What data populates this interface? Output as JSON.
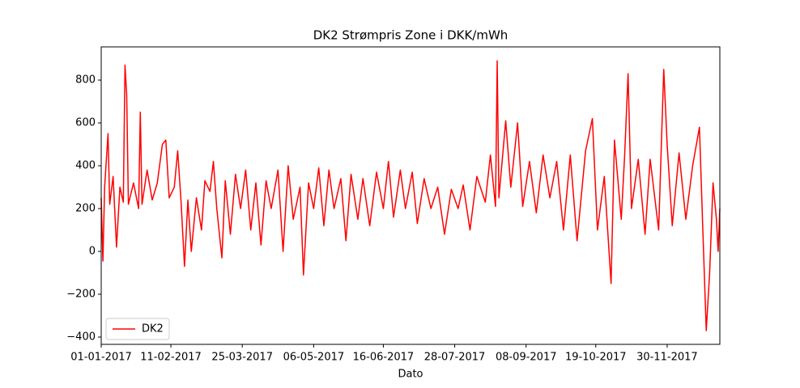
{
  "chart_data": {
    "type": "line",
    "title": "DK2 Strømpris Zone i DKK/mWh",
    "xlabel": "Dato",
    "x": [
      "2017-01-01",
      "2017-01-02",
      "2017-01-03",
      "2017-01-05",
      "2017-01-06",
      "2017-01-08",
      "2017-01-10",
      "2017-01-12",
      "2017-01-14",
      "2017-01-15",
      "2017-01-16",
      "2017-01-17",
      "2017-01-20",
      "2017-01-23",
      "2017-01-24",
      "2017-01-25",
      "2017-01-28",
      "2017-01-31",
      "2017-02-03",
      "2017-02-06",
      "2017-02-08",
      "2017-02-10",
      "2017-02-13",
      "2017-02-15",
      "2017-02-17",
      "2017-02-19",
      "2017-02-21",
      "2017-02-23",
      "2017-02-26",
      "2017-03-01",
      "2017-03-03",
      "2017-03-06",
      "2017-03-08",
      "2017-03-10",
      "2017-03-13",
      "2017-03-15",
      "2017-03-18",
      "2017-03-21",
      "2017-03-24",
      "2017-03-27",
      "2017-03-30",
      "2017-04-02",
      "2017-04-05",
      "2017-04-08",
      "2017-04-11",
      "2017-04-15",
      "2017-04-18",
      "2017-04-21",
      "2017-04-24",
      "2017-04-28",
      "2017-04-30",
      "2017-05-03",
      "2017-05-06",
      "2017-05-09",
      "2017-05-12",
      "2017-05-15",
      "2017-05-18",
      "2017-05-22",
      "2017-05-25",
      "2017-05-28",
      "2017-06-01",
      "2017-06-04",
      "2017-06-08",
      "2017-06-12",
      "2017-06-16",
      "2017-06-19",
      "2017-06-22",
      "2017-06-26",
      "2017-06-29",
      "2017-07-03",
      "2017-07-06",
      "2017-07-10",
      "2017-07-14",
      "2017-07-18",
      "2017-07-22",
      "2017-07-26",
      "2017-07-30",
      "2017-08-02",
      "2017-08-06",
      "2017-08-10",
      "2017-08-15",
      "2017-08-18",
      "2017-08-21",
      "2017-08-22",
      "2017-08-23",
      "2017-08-27",
      "2017-08-30",
      "2017-09-03",
      "2017-09-06",
      "2017-09-10",
      "2017-09-14",
      "2017-09-18",
      "2017-09-22",
      "2017-09-26",
      "2017-09-30",
      "2017-10-04",
      "2017-10-08",
      "2017-10-13",
      "2017-10-17",
      "2017-10-20",
      "2017-10-24",
      "2017-10-28",
      "2017-10-30",
      "2017-11-03",
      "2017-11-05",
      "2017-11-07",
      "2017-11-09",
      "2017-11-13",
      "2017-11-17",
      "2017-11-20",
      "2017-11-25",
      "2017-11-28",
      "2017-11-30",
      "2017-12-03",
      "2017-12-07",
      "2017-12-11",
      "2017-12-15",
      "2017-12-19",
      "2017-12-21",
      "2017-12-23",
      "2017-12-25",
      "2017-12-27",
      "2017-12-29",
      "2017-12-30",
      "2017-12-31"
    ],
    "series": [
      {
        "name": "DK2",
        "color": "#ff0000",
        "values": [
          250,
          -45,
          300,
          550,
          220,
          350,
          20,
          300,
          230,
          870,
          730,
          220,
          320,
          200,
          650,
          220,
          380,
          240,
          320,
          500,
          520,
          250,
          300,
          470,
          230,
          -70,
          240,
          0,
          250,
          100,
          330,
          280,
          420,
          200,
          -30,
          330,
          80,
          360,
          200,
          380,
          100,
          320,
          30,
          330,
          200,
          380,
          0,
          400,
          150,
          300,
          -110,
          320,
          200,
          390,
          120,
          380,
          200,
          340,
          50,
          360,
          150,
          340,
          120,
          370,
          200,
          420,
          160,
          380,
          200,
          370,
          130,
          340,
          200,
          300,
          80,
          290,
          200,
          310,
          100,
          350,
          230,
          450,
          210,
          890,
          250,
          610,
          300,
          600,
          210,
          420,
          180,
          450,
          250,
          420,
          100,
          450,
          50,
          470,
          620,
          100,
          350,
          -150,
          520,
          150,
          450,
          830,
          200,
          430,
          80,
          430,
          100,
          850,
          500,
          120,
          460,
          150,
          400,
          580,
          100,
          -370,
          -100,
          320,
          150,
          0,
          200
        ]
      }
    ],
    "xlim": [
      "2017-01-01",
      "2017-12-31"
    ],
    "xticks": [
      {
        "value": "2017-01-01",
        "label": "01-01-2017"
      },
      {
        "value": "2017-02-11",
        "label": "11-02-2017"
      },
      {
        "value": "2017-03-25",
        "label": "25-03-2017"
      },
      {
        "value": "2017-05-06",
        "label": "06-05-2017"
      },
      {
        "value": "2017-06-16",
        "label": "16-06-2017"
      },
      {
        "value": "2017-07-28",
        "label": "28-07-2017"
      },
      {
        "value": "2017-09-08",
        "label": "08-09-2017"
      },
      {
        "value": "2017-10-19",
        "label": "19-10-2017"
      },
      {
        "value": "2017-11-30",
        "label": "30-11-2017"
      }
    ],
    "ylim": [
      -434,
      955
    ],
    "yticks": [
      {
        "value": -400,
        "label": "−400"
      },
      {
        "value": -200,
        "label": "−200"
      },
      0,
      200,
      400,
      600,
      800
    ],
    "grid": false,
    "legend": "lower left"
  }
}
